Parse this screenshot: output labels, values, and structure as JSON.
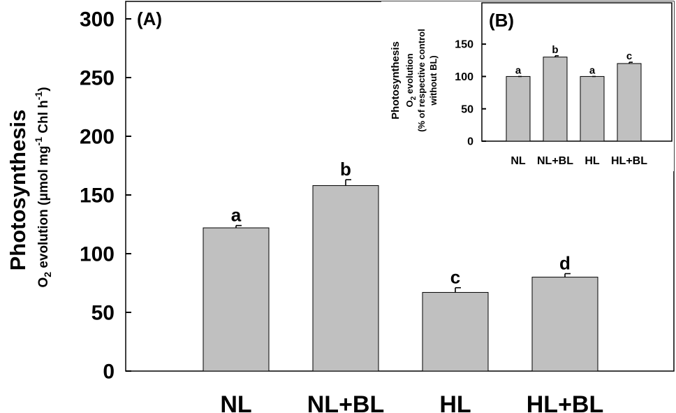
{
  "chart_data": [
    {
      "panel_label": "(A)",
      "type": "bar",
      "categories": [
        "NL",
        "NL+BL",
        "HL",
        "HL+BL"
      ],
      "values": [
        122,
        158,
        67,
        80
      ],
      "errors": [
        2,
        5,
        4,
        3
      ],
      "significance_letters": [
        "a",
        "b",
        "c",
        "d"
      ],
      "ylabel": "Photosynthesis",
      "ylabel_sub": {
        "pre": "O",
        "sub": "2",
        "mid": " evolution (μmol mg",
        "sup1": "-1",
        "mid2": " Chl h",
        "sup2": "-1",
        "post": ")"
      },
      "ylim": [
        0,
        300
      ],
      "yticks": [
        0,
        50,
        100,
        150,
        200,
        250,
        300
      ],
      "colors": {
        "bar": "#c0c0c0",
        "edge": "#000000"
      }
    },
    {
      "panel_label": "(B)",
      "type": "bar",
      "categories": [
        "NL",
        "NL+BL",
        "HL",
        "HL+BL"
      ],
      "values": [
        100,
        130,
        100,
        120
      ],
      "errors": [
        0,
        2,
        0,
        2
      ],
      "significance_letters": [
        "a",
        "b",
        "a",
        "c"
      ],
      "ylabel": "Photosynthesis",
      "ylabel_sub": {
        "pre": "O",
        "sub": "2",
        "post": " evolution",
        "line3": "(% of respective control",
        "line4": "without BL)"
      },
      "ylim": [
        0,
        175
      ],
      "yticks": [
        0,
        50,
        100,
        150
      ],
      "colors": {
        "bar": "#c0c0c0",
        "edge": "#000000"
      }
    }
  ]
}
